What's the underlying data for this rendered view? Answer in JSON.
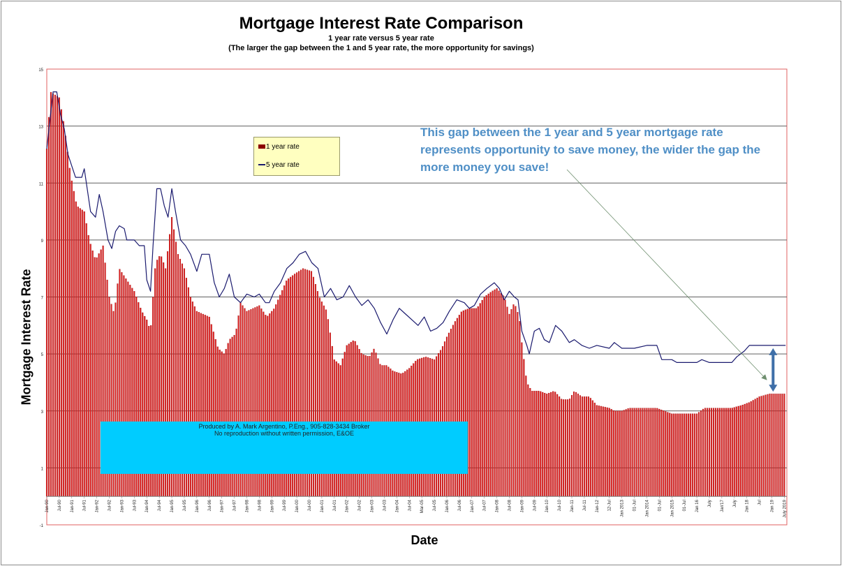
{
  "chart_data": {
    "type": "bar",
    "title": "Mortgage Interest Rate Comparison",
    "subtitle": [
      "1 year rate versus 5 year rate",
      "(The larger the gap between the 1 and 5 year rate, the more opportunity for savings)"
    ],
    "xlabel": "Date",
    "ylabel": "Mortgage Interest Rate",
    "ylim": [
      -1,
      15
    ],
    "yticks": [
      "-1",
      "1",
      "3",
      "5",
      "7",
      "9",
      "11",
      "13",
      "15"
    ],
    "grid": true,
    "legend_placement": "upper-left inside plot",
    "x_tick_labels": [
      "Jan-90",
      "Jul-90",
      "Jan-91",
      "Jul-91",
      "Jan-92",
      "Jul-92",
      "Jan-93",
      "Jul-93",
      "Jan-94",
      "Jul-94",
      "Jan-95",
      "Jul-95",
      "Jan-96",
      "Jul-96",
      "Jan-97",
      "Jul-97",
      "Jan-98",
      "Jul-98",
      "Jan-99",
      "Jul-99",
      "Jan-00",
      "Jul-00",
      "Jan-01",
      "Jul-01",
      "Jan-02",
      "Jul-02",
      "Jan-03",
      "Jul-03",
      "Jan-04",
      "Jul-04",
      "Mar-05",
      "Jul-05",
      "Jan-06",
      "Jul-06",
      "Jan-07",
      "Jul-07",
      "Jan-08",
      "Jul-08",
      "Jan-09",
      "Jul-09",
      "Jan-10",
      "Jul-10",
      "Jan-11",
      "Jul-11",
      "Jan-12",
      "12-Jul",
      "Jan 2013",
      "01-Jul",
      "Jan 2014",
      "01-Jul",
      "Jan 2015",
      "01-Jul",
      "Jan 16",
      "July",
      "Jan'17",
      "July",
      "Jan 18",
      "Jul",
      "Jan 19",
      "July 2019"
    ],
    "series": [
      {
        "name": "1 year rate",
        "type": "bar",
        "color": "#dd2222",
        "edge_color": "#8b0000",
        "keypoints": [
          [
            1990.0,
            12.2
          ],
          [
            1990.15,
            14.2
          ],
          [
            1990.5,
            14.0
          ],
          [
            1990.7,
            13.0
          ],
          [
            1990.95,
            11.3
          ],
          [
            1991.2,
            10.2
          ],
          [
            1991.5,
            10.0
          ],
          [
            1991.7,
            9.0
          ],
          [
            1991.95,
            8.3
          ],
          [
            1992.25,
            8.8
          ],
          [
            1992.5,
            7.0
          ],
          [
            1992.7,
            6.4
          ],
          [
            1992.9,
            8.0
          ],
          [
            1993.2,
            7.6
          ],
          [
            1993.5,
            7.2
          ],
          [
            1993.8,
            6.5
          ],
          [
            1994.0,
            6.2
          ],
          [
            1994.15,
            5.8
          ],
          [
            1994.35,
            8.2
          ],
          [
            1994.55,
            8.5
          ],
          [
            1994.75,
            8.0
          ],
          [
            1995.0,
            9.8
          ],
          [
            1995.25,
            8.5
          ],
          [
            1995.5,
            8.0
          ],
          [
            1995.75,
            7.0
          ],
          [
            1996.0,
            6.5
          ],
          [
            1996.5,
            6.3
          ],
          [
            1996.85,
            5.2
          ],
          [
            1997.1,
            5.0
          ],
          [
            1997.3,
            5.5
          ],
          [
            1997.55,
            5.7
          ],
          [
            1997.75,
            6.8
          ],
          [
            1998.0,
            6.5
          ],
          [
            1998.5,
            6.7
          ],
          [
            1998.8,
            6.3
          ],
          [
            1999.1,
            6.6
          ],
          [
            1999.3,
            7.0
          ],
          [
            1999.6,
            7.6
          ],
          [
            1999.9,
            7.8
          ],
          [
            2000.25,
            8.0
          ],
          [
            2000.6,
            7.9
          ],
          [
            2000.9,
            7.0
          ],
          [
            2001.2,
            6.5
          ],
          [
            2001.5,
            4.8
          ],
          [
            2001.75,
            4.6
          ],
          [
            2002.0,
            5.3
          ],
          [
            2002.3,
            5.5
          ],
          [
            2002.6,
            5.0
          ],
          [
            2002.9,
            4.9
          ],
          [
            2003.1,
            5.2
          ],
          [
            2003.35,
            4.6
          ],
          [
            2003.6,
            4.6
          ],
          [
            2003.85,
            4.4
          ],
          [
            2004.2,
            4.3
          ],
          [
            2004.5,
            4.5
          ],
          [
            2004.8,
            4.8
          ],
          [
            2005.15,
            4.9
          ],
          [
            2005.5,
            4.8
          ],
          [
            2005.8,
            5.2
          ],
          [
            2006.0,
            5.6
          ],
          [
            2006.3,
            6.1
          ],
          [
            2006.6,
            6.5
          ],
          [
            2006.9,
            6.6
          ],
          [
            2007.2,
            6.6
          ],
          [
            2007.5,
            7.0
          ],
          [
            2007.8,
            7.2
          ],
          [
            2008.0,
            7.3
          ],
          [
            2008.3,
            7.0
          ],
          [
            2008.5,
            6.4
          ],
          [
            2008.7,
            6.8
          ],
          [
            2008.9,
            6.3
          ],
          [
            2009.0,
            5.4
          ],
          [
            2009.2,
            4.0
          ],
          [
            2009.4,
            3.7
          ],
          [
            2009.7,
            3.7
          ],
          [
            2010.0,
            3.6
          ],
          [
            2010.3,
            3.7
          ],
          [
            2010.6,
            3.4
          ],
          [
            2010.9,
            3.4
          ],
          [
            2011.1,
            3.7
          ],
          [
            2011.4,
            3.5
          ],
          [
            2011.7,
            3.5
          ],
          [
            2012.0,
            3.2
          ],
          [
            2012.5,
            3.1
          ],
          [
            2012.7,
            3.0
          ],
          [
            2013.0,
            3.0
          ],
          [
            2013.3,
            3.1
          ],
          [
            2013.7,
            3.1
          ],
          [
            2014.4,
            3.1
          ],
          [
            2015.0,
            2.9
          ],
          [
            2015.5,
            2.9
          ],
          [
            2016.0,
            2.9
          ],
          [
            2016.3,
            3.1
          ],
          [
            2016.8,
            3.1
          ],
          [
            2017.4,
            3.1
          ],
          [
            2017.8,
            3.2
          ],
          [
            2018.1,
            3.3
          ],
          [
            2018.5,
            3.5
          ],
          [
            2018.9,
            3.6
          ],
          [
            2019.3,
            3.6
          ],
          [
            2019.55,
            3.6
          ]
        ]
      },
      {
        "name": "5 year rate",
        "type": "line",
        "color": "#1a1a6e",
        "keypoints": [
          [
            1990.0,
            12.2
          ],
          [
            1990.1,
            13.0
          ],
          [
            1990.25,
            14.2
          ],
          [
            1990.4,
            14.2
          ],
          [
            1990.55,
            13.4
          ],
          [
            1990.7,
            12.9
          ],
          [
            1990.85,
            12.0
          ],
          [
            1991.0,
            11.6
          ],
          [
            1991.15,
            11.2
          ],
          [
            1991.4,
            11.2
          ],
          [
            1991.5,
            11.5
          ],
          [
            1991.75,
            10.0
          ],
          [
            1991.95,
            9.8
          ],
          [
            1992.1,
            10.6
          ],
          [
            1992.25,
            10.0
          ],
          [
            1992.45,
            9.0
          ],
          [
            1992.6,
            8.7
          ],
          [
            1992.75,
            9.3
          ],
          [
            1992.9,
            9.5
          ],
          [
            1993.1,
            9.4
          ],
          [
            1993.2,
            9.0
          ],
          [
            1993.5,
            9.0
          ],
          [
            1993.7,
            8.8
          ],
          [
            1993.9,
            8.8
          ],
          [
            1994.0,
            7.6
          ],
          [
            1994.15,
            7.2
          ],
          [
            1994.25,
            8.8
          ],
          [
            1994.4,
            10.8
          ],
          [
            1994.55,
            10.8
          ],
          [
            1994.7,
            10.2
          ],
          [
            1994.85,
            9.8
          ],
          [
            1995.0,
            10.8
          ],
          [
            1995.15,
            10.0
          ],
          [
            1995.35,
            9.0
          ],
          [
            1995.55,
            8.8
          ],
          [
            1995.75,
            8.5
          ],
          [
            1996.0,
            7.9
          ],
          [
            1996.2,
            8.5
          ],
          [
            1996.5,
            8.5
          ],
          [
            1996.7,
            7.5
          ],
          [
            1996.9,
            7.0
          ],
          [
            1997.1,
            7.3
          ],
          [
            1997.3,
            7.8
          ],
          [
            1997.5,
            7.0
          ],
          [
            1997.75,
            6.8
          ],
          [
            1998.0,
            7.1
          ],
          [
            1998.3,
            7.0
          ],
          [
            1998.5,
            7.1
          ],
          [
            1998.75,
            6.8
          ],
          [
            1998.9,
            6.8
          ],
          [
            1999.1,
            7.2
          ],
          [
            1999.35,
            7.5
          ],
          [
            1999.6,
            8.0
          ],
          [
            1999.85,
            8.2
          ],
          [
            2000.1,
            8.5
          ],
          [
            2000.35,
            8.6
          ],
          [
            2000.6,
            8.2
          ],
          [
            2000.85,
            8.0
          ],
          [
            2001.1,
            7.0
          ],
          [
            2001.35,
            7.3
          ],
          [
            2001.6,
            6.9
          ],
          [
            2001.85,
            7.0
          ],
          [
            2002.1,
            7.4
          ],
          [
            2002.35,
            7.0
          ],
          [
            2002.6,
            6.7
          ],
          [
            2002.85,
            6.9
          ],
          [
            2003.1,
            6.6
          ],
          [
            2003.35,
            6.1
          ],
          [
            2003.6,
            5.7
          ],
          [
            2003.85,
            6.2
          ],
          [
            2004.1,
            6.6
          ],
          [
            2004.35,
            6.4
          ],
          [
            2004.6,
            6.2
          ],
          [
            2004.85,
            6.0
          ],
          [
            2005.1,
            6.3
          ],
          [
            2005.35,
            5.8
          ],
          [
            2005.6,
            5.9
          ],
          [
            2005.85,
            6.1
          ],
          [
            2006.1,
            6.5
          ],
          [
            2006.4,
            6.9
          ],
          [
            2006.7,
            6.8
          ],
          [
            2006.9,
            6.6
          ],
          [
            2007.1,
            6.7
          ],
          [
            2007.35,
            7.1
          ],
          [
            2007.6,
            7.3
          ],
          [
            2007.9,
            7.5
          ],
          [
            2008.1,
            7.3
          ],
          [
            2008.3,
            6.9
          ],
          [
            2008.5,
            7.2
          ],
          [
            2008.7,
            7.0
          ],
          [
            2008.85,
            6.9
          ],
          [
            2009.0,
            5.8
          ],
          [
            2009.2,
            5.3
          ],
          [
            2009.3,
            5.0
          ],
          [
            2009.5,
            5.8
          ],
          [
            2009.7,
            5.9
          ],
          [
            2009.9,
            5.5
          ],
          [
            2010.1,
            5.4
          ],
          [
            2010.35,
            6.0
          ],
          [
            2010.6,
            5.8
          ],
          [
            2010.9,
            5.4
          ],
          [
            2011.1,
            5.5
          ],
          [
            2011.4,
            5.3
          ],
          [
            2011.7,
            5.2
          ],
          [
            2012.0,
            5.3
          ],
          [
            2012.5,
            5.2
          ],
          [
            2012.7,
            5.4
          ],
          [
            2013.0,
            5.2
          ],
          [
            2013.5,
            5.2
          ],
          [
            2014.0,
            5.3
          ],
          [
            2014.4,
            5.3
          ],
          [
            2014.6,
            4.8
          ],
          [
            2015.0,
            4.8
          ],
          [
            2015.2,
            4.7
          ],
          [
            2015.6,
            4.7
          ],
          [
            2016.0,
            4.7
          ],
          [
            2016.2,
            4.8
          ],
          [
            2016.5,
            4.7
          ],
          [
            2017.4,
            4.7
          ],
          [
            2017.6,
            4.9
          ],
          [
            2017.9,
            5.1
          ],
          [
            2018.1,
            5.3
          ],
          [
            2018.5,
            5.3
          ],
          [
            2019.55,
            5.3
          ]
        ]
      }
    ]
  },
  "legend": [
    {
      "label": "1 year rate",
      "swatch": "bar"
    },
    {
      "label": "5 year rate",
      "swatch": "line"
    }
  ],
  "annotation": {
    "text": "This gap between the 1 year and 5 year mortgage rate represents opportunity to save money, the wider the gap the more money you save!",
    "color": "#4f8fc6"
  },
  "credit_box": {
    "line1": "Produced by A. Mark Argentino, P.Eng., 905-828-3434 Broker",
    "line2": "No reproduction without written permission, E&OE",
    "color": "#00ccff"
  },
  "colors": {
    "plot_border": "#e06060",
    "gridline": "#606060",
    "gap_arrow": "#3f6fa8"
  }
}
